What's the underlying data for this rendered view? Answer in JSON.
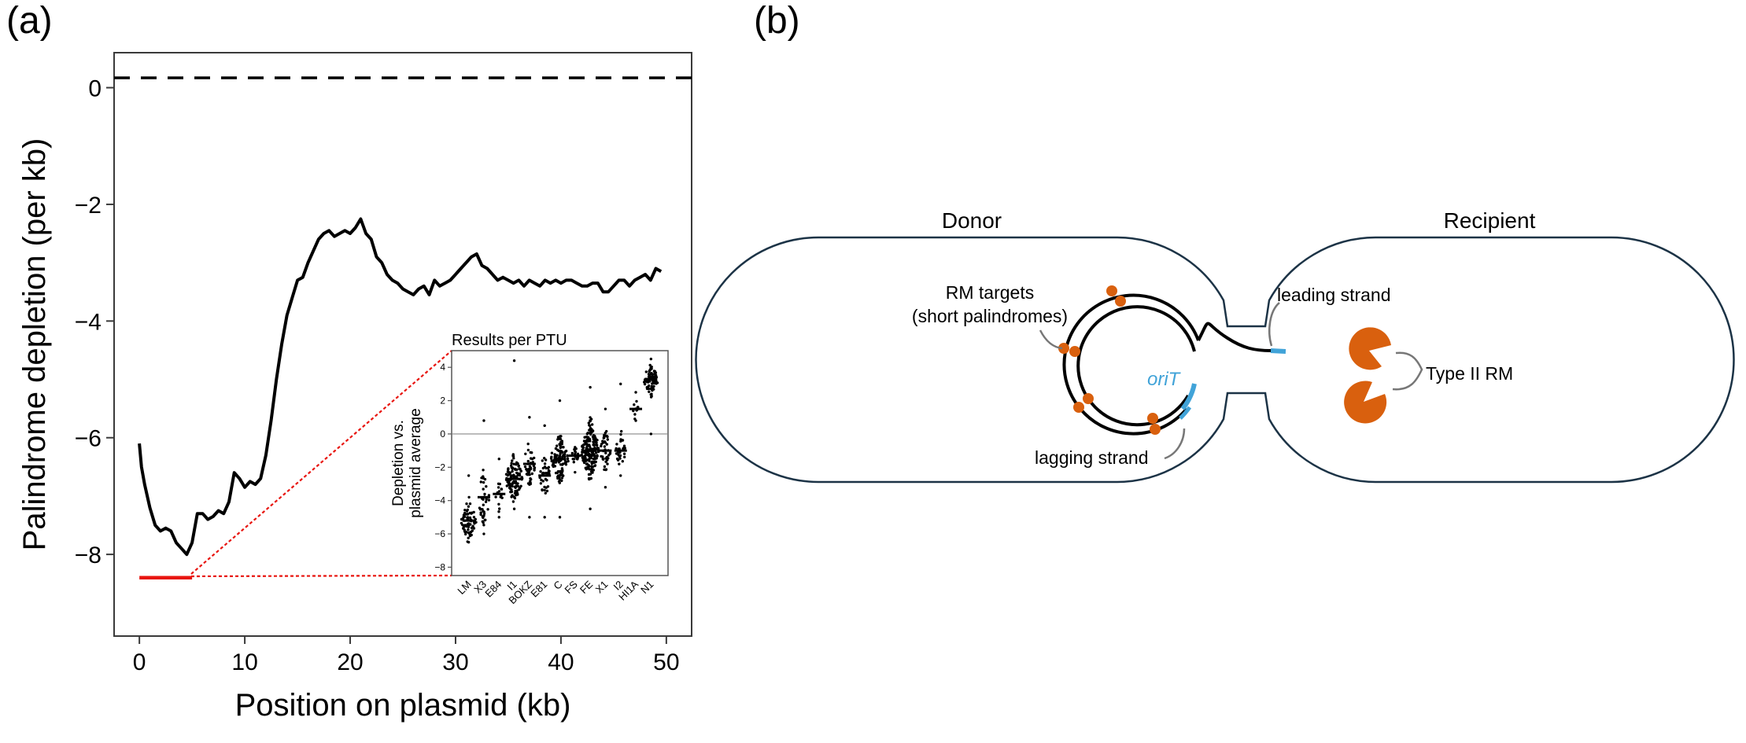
{
  "panel_a": {
    "label": "(a)",
    "xlabel": "Position on plasmid (kb)",
    "ylabel": "Palindrome depletion (per kb)",
    "x_ticks": [
      "0",
      "10",
      "20",
      "30",
      "40",
      "50"
    ],
    "y_ticks": [
      "0",
      "−2",
      "−4",
      "−6",
      "−8"
    ],
    "inset": {
      "title": "Results per PTU",
      "ylabel_line1": "Depletion vs.",
      "ylabel_line2": "plasmid average",
      "y_ticks": [
        "4",
        "2",
        "0",
        "−2",
        "−4",
        "−6",
        "−8"
      ]
    }
  },
  "panel_b": {
    "label": "(b)",
    "donor_label": "Donor",
    "recipient_label": "Recipient",
    "rm_targets_line1": "RM targets",
    "rm_targets_line2": "(short palindromes)",
    "leading_strand": "leading strand",
    "lagging_strand": "lagging strand",
    "oriT": "oriT",
    "type2rm": "Type II RM"
  },
  "colors": {
    "line": "#000000",
    "highlight": "#e8150f",
    "orange": "#d9600e",
    "blue": "#41a3d8",
    "cell_outline": "#1c3346"
  },
  "chart_data": [
    {
      "type": "line",
      "xlabel": "Position on plasmid (kb)",
      "ylabel": "Palindrome depletion (per kb)",
      "xlim": [
        -2.4,
        52.4
      ],
      "ylim": [
        -9.4,
        0.6
      ],
      "grid": false,
      "reference_line": {
        "y": 0,
        "style": "dashed"
      },
      "highlight_segment": {
        "x": [
          0,
          5
        ],
        "y": -8.4
      },
      "series": [
        {
          "x": [
            0,
            0.2,
            0.5,
            1,
            1.5,
            2,
            2.5,
            3,
            3.5,
            4,
            4.5,
            5,
            5.5,
            6,
            6.5,
            7,
            7.5,
            8,
            8.5,
            9,
            9.5,
            10,
            10.5,
            11,
            11.5,
            12,
            12.5,
            13,
            13.5,
            14,
            14.5,
            15,
            15.5,
            16,
            16.5,
            17,
            17.5,
            18,
            18.5,
            19,
            19.5,
            20,
            20.5,
            21,
            21.5,
            22,
            22.5,
            23,
            23.5,
            24,
            24.5,
            25,
            25.5,
            26,
            26.5,
            27,
            27.5,
            28,
            28.5,
            29,
            29.5,
            30,
            30.5,
            31,
            31.5,
            32,
            32.5,
            33,
            33.5,
            34,
            34.5,
            35,
            35.5,
            36,
            36.5,
            37,
            37.5,
            38,
            38.5,
            39,
            39.5,
            40,
            40.5,
            41,
            41.5,
            42,
            42.5,
            43,
            43.5,
            44,
            44.5,
            45,
            45.5,
            46,
            46.5,
            47,
            47.5,
            48,
            48.5,
            49,
            49.5
          ],
          "y": [
            -6.1,
            -6.5,
            -6.8,
            -7.2,
            -7.5,
            -7.6,
            -7.55,
            -7.6,
            -7.8,
            -7.9,
            -8.0,
            -7.8,
            -7.3,
            -7.3,
            -7.4,
            -7.35,
            -7.25,
            -7.3,
            -7.1,
            -6.6,
            -6.7,
            -6.85,
            -6.75,
            -6.8,
            -6.7,
            -6.3,
            -5.7,
            -5.0,
            -4.4,
            -3.9,
            -3.6,
            -3.3,
            -3.25,
            -3.0,
            -2.8,
            -2.6,
            -2.5,
            -2.45,
            -2.55,
            -2.5,
            -2.45,
            -2.5,
            -2.4,
            -2.25,
            -2.5,
            -2.6,
            -2.9,
            -3.0,
            -3.2,
            -3.3,
            -3.35,
            -3.45,
            -3.5,
            -3.55,
            -3.45,
            -3.4,
            -3.55,
            -3.3,
            -3.4,
            -3.35,
            -3.3,
            -3.2,
            -3.1,
            -3.0,
            -2.9,
            -2.85,
            -3.05,
            -3.1,
            -3.2,
            -3.3,
            -3.25,
            -3.3,
            -3.35,
            -3.3,
            -3.4,
            -3.3,
            -3.35,
            -3.4,
            -3.3,
            -3.35,
            -3.3,
            -3.35,
            -3.3,
            -3.3,
            -3.35,
            -3.4,
            -3.4,
            -3.35,
            -3.35,
            -3.5,
            -3.5,
            -3.4,
            -3.3,
            -3.3,
            -3.4,
            -3.3,
            -3.25,
            -3.2,
            -3.3,
            -3.1,
            -3.15
          ]
        }
      ]
    },
    {
      "type": "scatter",
      "title": "Results per PTU",
      "ylabel": "Depletion vs. plasmid average",
      "ylim": [
        -8.5,
        5.0
      ],
      "reference_line": {
        "y": 0,
        "style": "solid"
      },
      "categories": [
        "LM",
        "X3",
        "E84",
        "I1",
        "BOKZ",
        "E81",
        "C",
        "FS",
        "FE",
        "X1",
        "I2",
        "HI1A",
        "N1"
      ],
      "series": [
        {
          "category": "LM",
          "median": -5.2,
          "spread": 0.9,
          "n": 70,
          "min": -6.5,
          "max": -2.5
        },
        {
          "category": "X3",
          "median": -3.8,
          "spread": 1.3,
          "n": 40,
          "min": -6.0,
          "max": 0.8
        },
        {
          "category": "E84",
          "median": -3.6,
          "spread": 0.8,
          "n": 15,
          "min": -5.0,
          "max": -1.5
        },
        {
          "category": "I1",
          "median": -2.7,
          "spread": 1.0,
          "n": 110,
          "min": -4.5,
          "max": 4.4
        },
        {
          "category": "BOKZ",
          "median": -1.8,
          "spread": 1.0,
          "n": 40,
          "min": -5.0,
          "max": 1.0
        },
        {
          "category": "E81",
          "median": -2.5,
          "spread": 1.1,
          "n": 35,
          "min": -5.0,
          "max": 0.5
        },
        {
          "category": "C",
          "median": -1.5,
          "spread": 1.1,
          "n": 110,
          "min": -5.0,
          "max": 2.0
        },
        {
          "category": "FS",
          "median": -1.3,
          "spread": 0.4,
          "n": 15,
          "min": -2.3,
          "max": -0.8
        },
        {
          "category": "FE",
          "median": -1.0,
          "spread": 1.3,
          "n": 200,
          "min": -4.5,
          "max": 2.8
        },
        {
          "category": "X1",
          "median": -1.0,
          "spread": 0.9,
          "n": 40,
          "min": -3.2,
          "max": 1.5
        },
        {
          "category": "I2",
          "median": -1.0,
          "spread": 0.8,
          "n": 30,
          "min": -2.5,
          "max": 3.0
        },
        {
          "category": "HI1A",
          "median": 1.5,
          "spread": 0.4,
          "n": 10,
          "min": 0.8,
          "max": 2.5
        },
        {
          "category": "N1",
          "median": 3.3,
          "spread": 0.7,
          "n": 70,
          "min": 0,
          "max": 4.5
        }
      ]
    }
  ]
}
